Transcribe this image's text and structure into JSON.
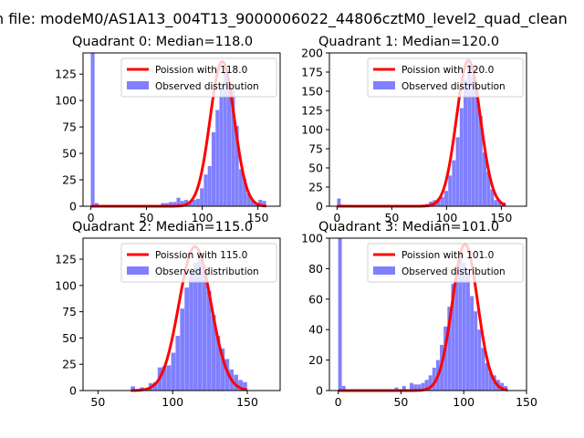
{
  "figure": {
    "suptitle": "n file: modeM0/AS1A13_004T13_9000006022_44806cztM0_level2_quad_clean"
  },
  "chart_data": [
    {
      "type": "bar",
      "title": "Quadrant 0: Median=118.0",
      "xlim": [
        -7,
        170
      ],
      "ylim": [
        0,
        145
      ],
      "xticks": [
        0,
        50,
        100,
        150
      ],
      "yticks": [
        0,
        25,
        50,
        75,
        100,
        125
      ],
      "legend_position": "upper-right",
      "fit_series": {
        "name": "Poission with 118.0",
        "color": "#ff0000",
        "mean": 118.0,
        "peak": 137
      },
      "hist_series": {
        "name": "Observed distribution",
        "color": "#8080ff",
        "bin_width": 3.5,
        "bars": [
          {
            "x": 0,
            "y": 145
          },
          {
            "x": 3.5,
            "y": 3
          },
          {
            "x": 63,
            "y": 3
          },
          {
            "x": 66.5,
            "y": 3
          },
          {
            "x": 70,
            "y": 4
          },
          {
            "x": 73.5,
            "y": 4
          },
          {
            "x": 77,
            "y": 8
          },
          {
            "x": 80.5,
            "y": 5
          },
          {
            "x": 84,
            "y": 6
          },
          {
            "x": 87.5,
            "y": 4
          },
          {
            "x": 91,
            "y": 6
          },
          {
            "x": 94.5,
            "y": 7
          },
          {
            "x": 98,
            "y": 17
          },
          {
            "x": 101.5,
            "y": 30
          },
          {
            "x": 105,
            "y": 38
          },
          {
            "x": 108.5,
            "y": 70
          },
          {
            "x": 112,
            "y": 91
          },
          {
            "x": 115.5,
            "y": 115
          },
          {
            "x": 119,
            "y": 126
          },
          {
            "x": 122.5,
            "y": 117
          },
          {
            "x": 126,
            "y": 110
          },
          {
            "x": 129.5,
            "y": 76
          },
          {
            "x": 133,
            "y": 35
          },
          {
            "x": 136.5,
            "y": 26
          },
          {
            "x": 140,
            "y": 12
          },
          {
            "x": 143.5,
            "y": 6
          },
          {
            "x": 147,
            "y": 3
          },
          {
            "x": 150.5,
            "y": 6
          },
          {
            "x": 154,
            "y": 5
          }
        ]
      }
    },
    {
      "type": "bar",
      "title": "Quadrant 1: Median=120.0",
      "xlim": [
        -7,
        173
      ],
      "ylim": [
        0,
        200
      ],
      "xticks": [
        0,
        50,
        100,
        150
      ],
      "yticks": [
        0,
        25,
        50,
        75,
        100,
        125,
        150,
        175,
        200
      ],
      "legend_position": "upper-right",
      "fit_series": {
        "name": "Poission with 120.0",
        "color": "#ff0000",
        "mean": 120.0,
        "peak": 190
      },
      "hist_series": {
        "name": "Observed distribution",
        "color": "#8080ff",
        "bin_width": 3.5,
        "bars": [
          {
            "x": 0,
            "y": 10
          },
          {
            "x": 3.5,
            "y": 2
          },
          {
            "x": 77,
            "y": 2
          },
          {
            "x": 80.5,
            "y": 3
          },
          {
            "x": 84,
            "y": 6
          },
          {
            "x": 87.5,
            "y": 8
          },
          {
            "x": 91,
            "y": 10
          },
          {
            "x": 94.5,
            "y": 12
          },
          {
            "x": 98,
            "y": 20
          },
          {
            "x": 101.5,
            "y": 40
          },
          {
            "x": 105,
            "y": 60
          },
          {
            "x": 108.5,
            "y": 90
          },
          {
            "x": 112,
            "y": 128
          },
          {
            "x": 115.5,
            "y": 165
          },
          {
            "x": 119,
            "y": 185
          },
          {
            "x": 122.5,
            "y": 170
          },
          {
            "x": 126,
            "y": 155
          },
          {
            "x": 129.5,
            "y": 118
          },
          {
            "x": 133,
            "y": 70
          },
          {
            "x": 136.5,
            "y": 45
          },
          {
            "x": 140,
            "y": 22
          },
          {
            "x": 143.5,
            "y": 8
          },
          {
            "x": 147,
            "y": 5
          },
          {
            "x": 150.5,
            "y": 5
          }
        ]
      }
    },
    {
      "type": "bar",
      "title": "Quadrant 2: Median=115.0",
      "xlim": [
        40,
        172
      ],
      "ylim": [
        0,
        145
      ],
      "xticks": [
        50,
        100,
        150
      ],
      "yticks": [
        0,
        25,
        50,
        75,
        100,
        125
      ],
      "legend_position": "upper-right",
      "fit_series": {
        "name": "Poission with 115.0",
        "color": "#ff0000",
        "mean": 115.0,
        "peak": 137
      },
      "hist_series": {
        "name": "Observed distribution",
        "color": "#8080ff",
        "bin_width": 3,
        "bars": [
          {
            "x": 72,
            "y": 4
          },
          {
            "x": 78,
            "y": 3
          },
          {
            "x": 84,
            "y": 7
          },
          {
            "x": 87,
            "y": 8
          },
          {
            "x": 90,
            "y": 22
          },
          {
            "x": 93,
            "y": 23
          },
          {
            "x": 96,
            "y": 24
          },
          {
            "x": 99,
            "y": 36
          },
          {
            "x": 102,
            "y": 52
          },
          {
            "x": 105,
            "y": 78
          },
          {
            "x": 108,
            "y": 98
          },
          {
            "x": 111,
            "y": 112
          },
          {
            "x": 114,
            "y": 122
          },
          {
            "x": 117,
            "y": 125
          },
          {
            "x": 120,
            "y": 118
          },
          {
            "x": 123,
            "y": 95
          },
          {
            "x": 126,
            "y": 72
          },
          {
            "x": 129,
            "y": 52
          },
          {
            "x": 132,
            "y": 40
          },
          {
            "x": 135,
            "y": 30
          },
          {
            "x": 138,
            "y": 20
          },
          {
            "x": 141,
            "y": 15
          },
          {
            "x": 144,
            "y": 10
          },
          {
            "x": 147,
            "y": 8
          }
        ]
      }
    },
    {
      "type": "bar",
      "title": "Quadrant 3: Median=101.0",
      "xlim": [
        -7,
        150
      ],
      "ylim": [
        0,
        100
      ],
      "xticks": [
        0,
        50,
        100,
        150
      ],
      "yticks": [
        0,
        20,
        40,
        60,
        80,
        100
      ],
      "legend_position": "upper-right",
      "fit_series": {
        "name": "Poission with 101.0",
        "color": "#ff0000",
        "mean": 101.0,
        "peak": 96
      },
      "hist_series": {
        "name": "Observed distribution",
        "color": "#8080ff",
        "bin_width": 3,
        "bars": [
          {
            "x": 0,
            "y": 100
          },
          {
            "x": 3,
            "y": 3
          },
          {
            "x": 45,
            "y": 2
          },
          {
            "x": 51,
            "y": 3
          },
          {
            "x": 57,
            "y": 5
          },
          {
            "x": 60,
            "y": 4
          },
          {
            "x": 63,
            "y": 4
          },
          {
            "x": 66,
            "y": 5
          },
          {
            "x": 69,
            "y": 7
          },
          {
            "x": 72,
            "y": 10
          },
          {
            "x": 75,
            "y": 15
          },
          {
            "x": 78,
            "y": 20
          },
          {
            "x": 81,
            "y": 30
          },
          {
            "x": 84,
            "y": 42
          },
          {
            "x": 87,
            "y": 55
          },
          {
            "x": 90,
            "y": 70
          },
          {
            "x": 93,
            "y": 80
          },
          {
            "x": 96,
            "y": 86
          },
          {
            "x": 99,
            "y": 84
          },
          {
            "x": 102,
            "y": 78
          },
          {
            "x": 105,
            "y": 62
          },
          {
            "x": 108,
            "y": 52
          },
          {
            "x": 111,
            "y": 40
          },
          {
            "x": 114,
            "y": 28
          },
          {
            "x": 117,
            "y": 18
          },
          {
            "x": 120,
            "y": 12
          },
          {
            "x": 123,
            "y": 10
          },
          {
            "x": 126,
            "y": 7
          },
          {
            "x": 129,
            "y": 5
          },
          {
            "x": 132,
            "y": 3
          }
        ]
      }
    }
  ]
}
